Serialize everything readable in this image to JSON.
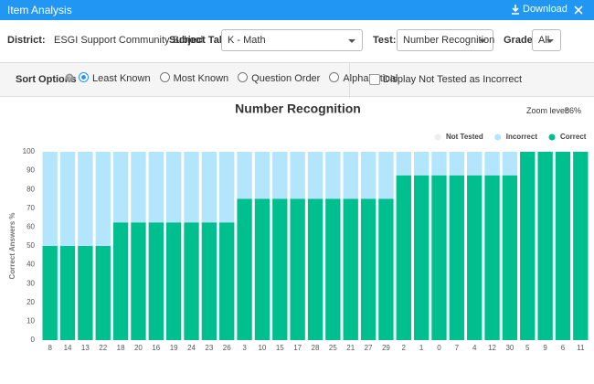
{
  "header": {
    "title": "Item Analysis",
    "download": "Download"
  },
  "filters": {
    "district_label": "District:",
    "district": "ESGI Support Community School",
    "subject_label": "Subject Tab:",
    "subject": "K - Math",
    "test_label": "Test:",
    "test": "Number Recognition",
    "grade_label": "Grade:",
    "grade": "All"
  },
  "sort_options": {
    "label": "Sort Options",
    "options": [
      "Least Known",
      "Most Known",
      "Question Order",
      "Alphabetical"
    ],
    "selected": 0,
    "checkbox": "Display Not Tested as Incorrect"
  },
  "zoom": {
    "label": "Zoom level:",
    "value": "86%"
  },
  "chart_data": {
    "type": "stacked_bar",
    "title": "Number Recognition",
    "y_label": "Correct Answers %",
    "categories": [
      "8",
      "14",
      "13",
      "22",
      "18",
      "20",
      "16",
      "19",
      "24",
      "23",
      "26",
      "3",
      "10",
      "15",
      "17",
      "28",
      "25",
      "21",
      "27",
      "29",
      "2",
      "1",
      "0",
      "7",
      "4",
      "12",
      "30",
      "5",
      "9",
      "6",
      "11"
    ],
    "series": [
      {
        "name": "Not Tested",
        "color": "#eeeeee",
        "values": [
          0,
          0,
          0,
          0,
          0,
          0,
          0,
          0,
          0,
          0,
          0,
          0,
          0,
          0,
          0,
          0,
          0,
          0,
          0,
          0,
          0,
          0,
          0,
          0,
          0,
          0,
          0,
          0,
          0,
          0,
          0
        ]
      },
      {
        "name": "Incorrect",
        "color": "#b3e5fc",
        "values": [
          50,
          50,
          50,
          50,
          37.5,
          37.5,
          37.5,
          37.5,
          37.5,
          37.5,
          37.5,
          25,
          25,
          25,
          25,
          25,
          25,
          25,
          25,
          25,
          12.5,
          12.5,
          12.5,
          12.5,
          12.5,
          12.5,
          12.5,
          0,
          0,
          0,
          0
        ]
      },
      {
        "name": "Correct",
        "color": "#00bf8f",
        "values": [
          50,
          50,
          50,
          50,
          62.5,
          62.5,
          62.5,
          62.5,
          62.5,
          62.5,
          62.5,
          75,
          75,
          75,
          75,
          75,
          75,
          75,
          75,
          75,
          87.5,
          87.5,
          87.5,
          87.5,
          87.5,
          87.5,
          87.5,
          100,
          100,
          100,
          100
        ]
      }
    ],
    "ylim": [
      0,
      100
    ],
    "yticks": [
      0,
      10,
      20,
      30,
      40,
      50,
      60,
      70,
      80,
      90,
      100
    ]
  }
}
